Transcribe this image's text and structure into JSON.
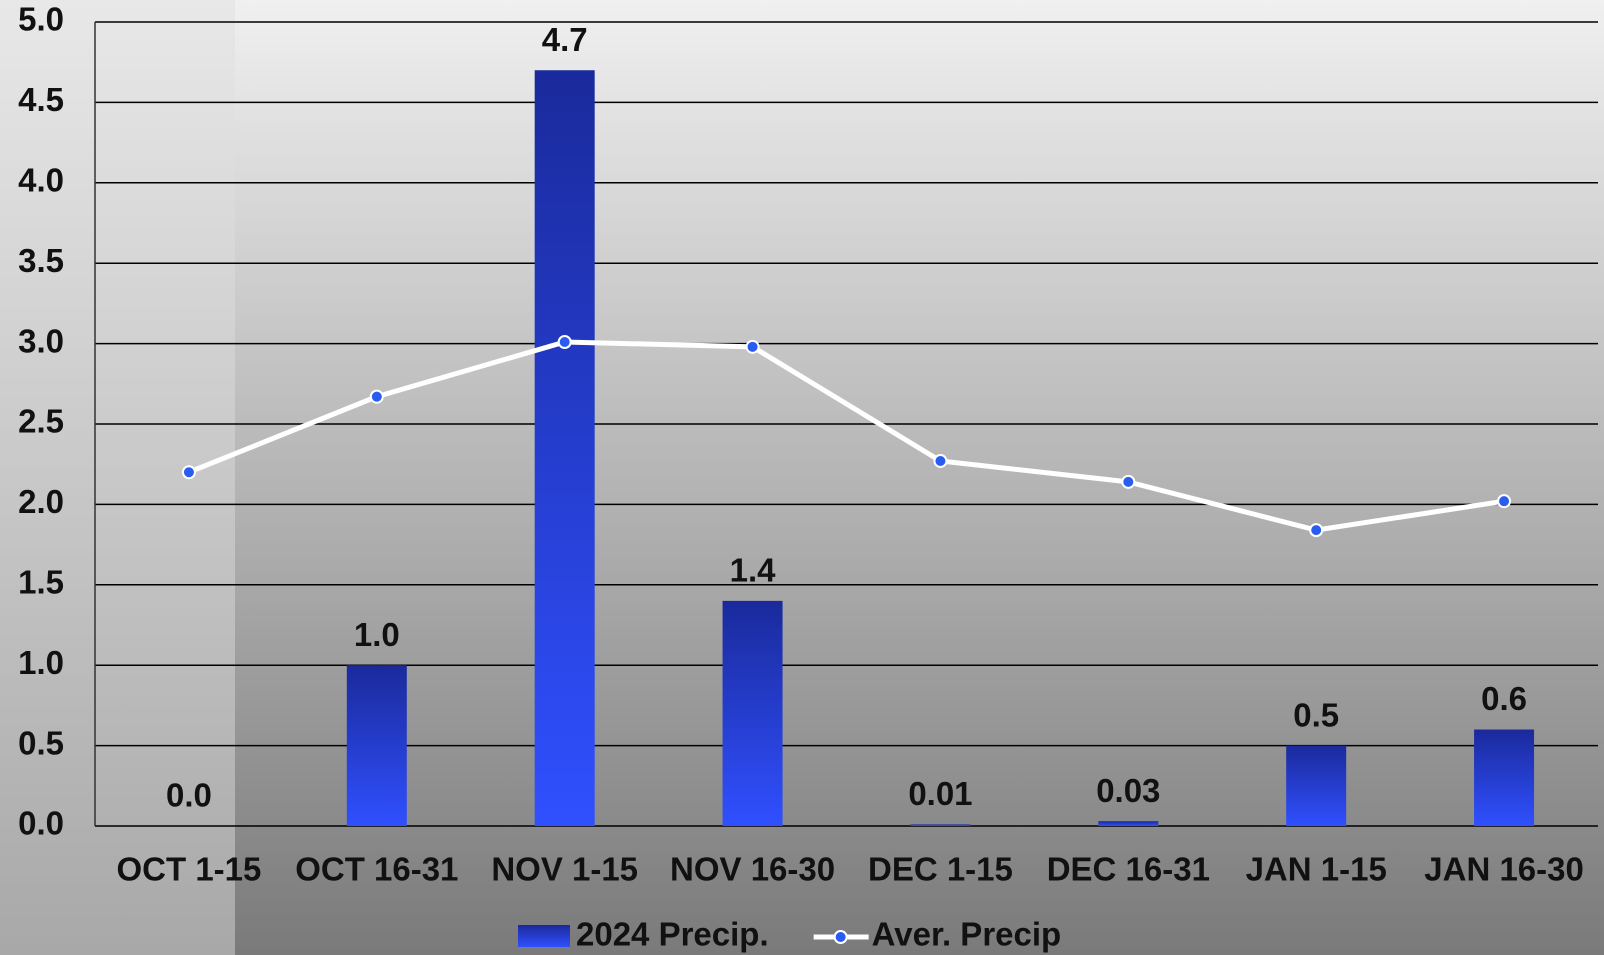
{
  "chart_data": {
    "type": "bar",
    "categories": [
      "OCT 1-15",
      "OCT 16-31",
      "NOV 1-15",
      "NOV 16-30",
      "DEC 1-15",
      "DEC 16-31",
      "JAN 1-15",
      "JAN 16-30"
    ],
    "series": [
      {
        "name": "2024 Precip.",
        "type": "bar",
        "color": "#2a46e8",
        "values": [
          0,
          1.0,
          4.7,
          1.4,
          0.01,
          0.03,
          0.5,
          0.6
        ],
        "value_labels": [
          "0.0",
          "1.0",
          "4.7",
          "1.4",
          "0.01",
          "0.03",
          "0.5",
          "0.6"
        ]
      },
      {
        "name": "Aver. Precip",
        "type": "line",
        "color": "#ffffff",
        "values": [
          2.2,
          2.67,
          3.01,
          2.98,
          2.27,
          2.14,
          1.84,
          2.02
        ]
      }
    ],
    "ylim": [
      0,
      5
    ],
    "yticks": [
      {
        "value": 0,
        "label": "0.0"
      },
      0.5,
      {
        "value": 1,
        "label": "1.0"
      },
      1.5,
      {
        "value": 2,
        "label": "2.0"
      },
      2.5,
      {
        "value": 3,
        "label": "3.0"
      },
      3.5,
      {
        "value": 4,
        "label": "4.0"
      },
      4.5,
      {
        "value": 5,
        "label": "5.0"
      }
    ],
    "grid": true,
    "legend": "bottom"
  }
}
